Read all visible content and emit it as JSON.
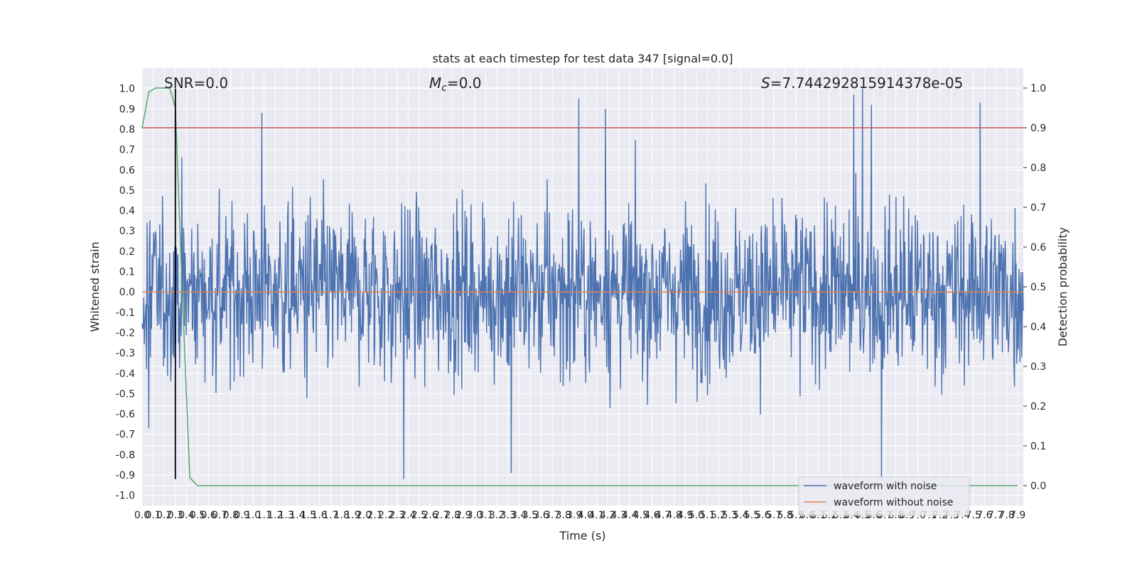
{
  "chart_data": {
    "type": "line",
    "title": "stats at each timestep for test data 347 [signal=0.0]",
    "xlabel": "Time (s)",
    "ylabel": "Whitened strain",
    "ylabel_right": "Detection probability",
    "xlim": [
      0.0,
      7.95
    ],
    "ylim": [
      -1.05,
      1.1
    ],
    "ylim_right": [
      -0.05,
      1.05
    ],
    "x_ticks": [
      "0.0",
      "0.1",
      "0.2",
      "0.3",
      "0.4",
      "0.5",
      "0.6",
      "0.7",
      "0.8",
      "0.9",
      "1.0",
      "1.1",
      "1.2",
      "1.3",
      "1.4",
      "1.5",
      "1.6",
      "1.7",
      "1.8",
      "1.9",
      "2.0",
      "2.1",
      "2.2",
      "2.3",
      "2.4",
      "2.5",
      "2.6",
      "2.7",
      "2.8",
      "2.9",
      "3.0",
      "3.1",
      "3.2",
      "3.3",
      "3.4",
      "3.5",
      "3.6",
      "3.7",
      "3.8",
      "3.9",
      "4.0",
      "4.1",
      "4.2",
      "4.3",
      "4.4",
      "4.5",
      "4.6",
      "4.7",
      "4.8",
      "4.9",
      "5.0",
      "5.1",
      "5.2",
      "5.3",
      "5.4",
      "5.5",
      "5.6",
      "5.7",
      "5.8",
      "5.9",
      "6.0",
      "6.1",
      "6.2",
      "6.3",
      "6.4",
      "6.5",
      "6.6",
      "6.7",
      "6.8",
      "6.9",
      "7.0",
      "7.1",
      "7.2",
      "7.3",
      "7.4",
      "7.5",
      "7.6",
      "7.7",
      "7.8",
      "7.9"
    ],
    "y_ticks": [
      "-1.0",
      "-0.9",
      "-0.8",
      "-0.7",
      "-0.6",
      "-0.5",
      "-0.4",
      "-0.3",
      "-0.2",
      "-0.1",
      "0.0",
      "0.1",
      "0.2",
      "0.3",
      "0.4",
      "0.5",
      "0.6",
      "0.7",
      "0.8",
      "0.9",
      "1.0"
    ],
    "y_ticks_right": [
      "0.0",
      "0.1",
      "0.2",
      "0.3",
      "0.4",
      "0.5",
      "0.6",
      "0.7",
      "0.8",
      "0.9",
      "1.0"
    ],
    "annotations": {
      "snr": "SNR=0.0",
      "mc": "M",
      "mc_sub": "c",
      "mc_val": "=0.0",
      "s": "S",
      "s_val": "=7.744292815914378e-05"
    },
    "grid": true,
    "legend_position": "lower-right",
    "series": [
      {
        "name": "waveform with noise",
        "color": "#4c72b0",
        "axis": "left",
        "description_peaks": [
          {
            "x": 1.08,
            "y": 0.88
          },
          {
            "x": 3.94,
            "y": 0.95
          },
          {
            "x": 4.18,
            "y": 0.9
          },
          {
            "x": 6.42,
            "y": 0.97
          },
          {
            "x": 6.5,
            "y": 1.0
          },
          {
            "x": 6.58,
            "y": 0.92
          },
          {
            "x": 7.56,
            "y": 0.93
          },
          {
            "x": 2.36,
            "y": -0.92
          },
          {
            "x": 6.67,
            "y": -0.91
          },
          {
            "x": 3.33,
            "y": -0.89
          },
          {
            "x": 0.06,
            "y": -0.67
          }
        ]
      },
      {
        "name": "waveform without noise",
        "color": "#dd8452",
        "axis": "left",
        "x": [
          0.0,
          7.95
        ],
        "y": [
          0.0,
          0.0
        ]
      },
      {
        "name": "",
        "color": "#55a868",
        "axis": "right",
        "x": [
          0.0,
          0.06,
          0.12,
          0.25,
          0.3,
          0.36,
          0.43,
          0.5,
          7.9
        ],
        "y": [
          0.9,
          0.99,
          1.0,
          1.0,
          0.95,
          0.5,
          0.02,
          0.0,
          0.0
        ]
      }
    ],
    "threshold": {
      "color": "#c44e52",
      "value_right": 0.9
    },
    "marker_line": {
      "color": "#000000",
      "x": 0.3,
      "y_range": [
        -0.92,
        1.0
      ]
    }
  }
}
